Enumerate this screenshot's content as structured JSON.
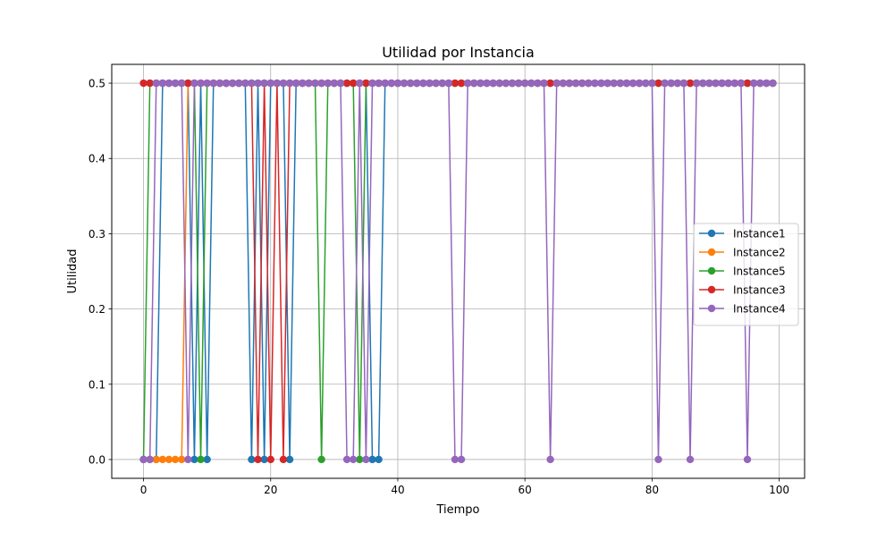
{
  "chart_data": {
    "type": "line",
    "title": "Utilidad por Instancia",
    "xlabel": "Tiempo",
    "ylabel": "Utilidad",
    "xlim": [
      -5,
      104
    ],
    "ylim": [
      -0.025,
      0.525
    ],
    "x_ticks": [
      0,
      20,
      40,
      60,
      80,
      100
    ],
    "x_tick_labels": [
      "0",
      "20",
      "40",
      "60",
      "80",
      "100"
    ],
    "y_ticks": [
      0.0,
      0.1,
      0.2,
      0.3,
      0.4,
      0.5
    ],
    "y_tick_labels": [
      "0.0",
      "0.1",
      "0.2",
      "0.3",
      "0.4",
      "0.5"
    ],
    "grid": true,
    "legend_position": "center-right",
    "marker": "circle",
    "x": [
      0,
      1,
      2,
      3,
      4,
      5,
      6,
      7,
      8,
      9,
      10,
      11,
      12,
      13,
      14,
      15,
      16,
      17,
      18,
      19,
      20,
      21,
      22,
      23,
      24,
      25,
      26,
      27,
      28,
      29,
      30,
      31,
      32,
      33,
      34,
      35,
      36,
      37,
      38,
      39,
      40,
      41,
      42,
      43,
      44,
      45,
      46,
      47,
      48,
      49,
      50,
      51,
      52,
      53,
      54,
      55,
      56,
      57,
      58,
      59,
      60,
      61,
      62,
      63,
      64,
      65,
      66,
      67,
      68,
      69,
      70,
      71,
      72,
      73,
      74,
      75,
      76,
      77,
      78,
      79,
      80,
      81,
      82,
      83,
      84,
      85,
      86,
      87,
      88,
      89,
      90,
      91,
      92,
      93,
      94,
      95,
      96,
      97,
      98,
      99
    ],
    "series": [
      {
        "name": "Instance1",
        "color": "#1f77b4",
        "x": [
          0,
          1,
          2,
          3,
          4,
          5,
          6,
          7,
          8,
          9,
          10,
          11,
          12,
          13,
          14,
          15,
          16,
          17,
          18,
          19,
          20,
          21,
          22,
          23,
          24,
          25,
          26,
          27,
          28,
          29,
          30,
          31,
          32,
          33,
          34,
          35,
          36,
          37,
          38,
          39,
          40,
          41,
          42,
          43,
          44,
          45,
          46,
          47,
          48,
          49,
          50,
          51,
          52,
          53,
          54,
          55,
          56,
          57,
          58,
          59,
          60,
          61,
          62,
          63,
          64,
          65,
          66,
          67,
          68,
          69,
          70,
          71,
          72,
          73,
          74,
          75,
          76,
          77,
          78,
          79,
          80,
          81,
          82,
          83,
          84,
          85,
          86,
          87,
          88,
          89,
          90,
          91,
          92,
          93,
          94,
          95,
          96,
          97,
          98,
          99
        ],
        "values": [
          0,
          0,
          0,
          0.5,
          0.5,
          0.5,
          0.5,
          0.5,
          0,
          0.5,
          0,
          0.5,
          0.5,
          0.5,
          0.5,
          0.5,
          0.5,
          0,
          0.5,
          0,
          0.5,
          0.5,
          0.5,
          0,
          0.5,
          0.5,
          0.5,
          0.5,
          0.5,
          0.5,
          0.5,
          0.5,
          0.5,
          0.5,
          0.5,
          0.5,
          0,
          0,
          0.5,
          0.5,
          0.5,
          0.5,
          0.5,
          0.5,
          0.5,
          0.5,
          0.5,
          0.5,
          0.5,
          0.5,
          0.5,
          0.5,
          0.5,
          0.5,
          0.5,
          0.5,
          0.5,
          0.5,
          0.5,
          0.5,
          0.5,
          0.5,
          0.5,
          0.5,
          0.5,
          0.5,
          0.5,
          0.5,
          0.5,
          0.5,
          0.5,
          0.5,
          0.5,
          0.5,
          0.5,
          0.5,
          0.5,
          0.5,
          0.5,
          0.5,
          0.5,
          0.5,
          0.5,
          0.5,
          0.5,
          0.5,
          0.5,
          0.5,
          0.5,
          0.5,
          0.5,
          0.5,
          0.5,
          0.5,
          0.5,
          0.5,
          0.5,
          0.5,
          0.5,
          0.5
        ]
      },
      {
        "name": "Instance2",
        "color": "#ff7f0e",
        "x": [
          0,
          1,
          2,
          3,
          4,
          5,
          6,
          7,
          8,
          9,
          10,
          11,
          12,
          13,
          14,
          15,
          16,
          17,
          18,
          19,
          20,
          21,
          22,
          23,
          24,
          25,
          26,
          27,
          28,
          29,
          30,
          31,
          32,
          33,
          34,
          35,
          36,
          37,
          38,
          39,
          40,
          41,
          42,
          43,
          44,
          45,
          46,
          47,
          48,
          49,
          50,
          51,
          52,
          53,
          54,
          55,
          56,
          57,
          58,
          59,
          60,
          61,
          62,
          63,
          64,
          65,
          66,
          67,
          68,
          69,
          70,
          71,
          72,
          73,
          74,
          75,
          76,
          77,
          78,
          79,
          80,
          81,
          82,
          83,
          84,
          85,
          86,
          87,
          88,
          89,
          90,
          91,
          92,
          93,
          94,
          95,
          96,
          97,
          98,
          99
        ],
        "values": [
          0,
          0,
          0,
          0,
          0,
          0,
          0,
          0.5,
          0.5,
          0.5,
          0.5,
          0.5,
          0.5,
          0.5,
          0.5,
          0.5,
          0.5,
          0.5,
          0.5,
          0.5,
          0.5,
          0.5,
          0.5,
          0.5,
          0.5,
          0.5,
          0.5,
          0.5,
          0.5,
          0.5,
          0.5,
          0.5,
          0.5,
          0.5,
          0.5,
          0.5,
          0.5,
          0.5,
          0.5,
          0.5,
          0.5,
          0.5,
          0.5,
          0.5,
          0.5,
          0.5,
          0.5,
          0.5,
          0.5,
          0.5,
          0.5,
          0.5,
          0.5,
          0.5,
          0.5,
          0.5,
          0.5,
          0.5,
          0.5,
          0.5,
          0.5,
          0.5,
          0.5,
          0.5,
          0.5,
          0.5,
          0.5,
          0.5,
          0.5,
          0.5,
          0.5,
          0.5,
          0.5,
          0.5,
          0.5,
          0.5,
          0.5,
          0.5,
          0.5,
          0.5,
          0.5,
          0.5,
          0.5,
          0.5,
          0.5,
          0.5,
          0.5,
          0.5,
          0.5,
          0.5,
          0.5,
          0.5,
          0.5,
          0.5,
          0.5,
          0.5,
          0.5,
          0.5,
          0.5,
          0.5
        ]
      },
      {
        "name": "Instance5",
        "color": "#2ca02c",
        "x": [
          0,
          1,
          2,
          3,
          4,
          5,
          6,
          7,
          8,
          9,
          10,
          11,
          12,
          13,
          14,
          15,
          16,
          17,
          18,
          19,
          20,
          21,
          22,
          23,
          24,
          25,
          26,
          27,
          28,
          29,
          30,
          31,
          32,
          33,
          34,
          35,
          36,
          37,
          38,
          39,
          40,
          41,
          42,
          43,
          44,
          45,
          46,
          47,
          48,
          49,
          50,
          51,
          52,
          53,
          54,
          55,
          56,
          57,
          58,
          59,
          60,
          61,
          62,
          63,
          64,
          65,
          66,
          67,
          68,
          69,
          70,
          71,
          72,
          73,
          74,
          75,
          76,
          77,
          78,
          79,
          80,
          81,
          82,
          83,
          84,
          85,
          86,
          87,
          88,
          89,
          90,
          91,
          92,
          93,
          94,
          95,
          96,
          97,
          98,
          99
        ],
        "values": [
          0,
          0.5,
          0.5,
          0.5,
          0.5,
          0.5,
          0.5,
          0.5,
          0.5,
          0,
          0.5,
          0.5,
          0.5,
          0.5,
          0.5,
          0.5,
          0.5,
          0.5,
          0.5,
          0.5,
          0.5,
          0.5,
          0.5,
          0.5,
          0.5,
          0.5,
          0.5,
          0.5,
          0,
          0.5,
          0.5,
          0.5,
          0.5,
          0.5,
          0,
          0.5,
          0.5,
          0.5,
          0.5,
          0.5,
          0.5,
          0.5,
          0.5,
          0.5,
          0.5,
          0.5,
          0.5,
          0.5,
          0.5,
          0.5,
          0.5,
          0.5,
          0.5,
          0.5,
          0.5,
          0.5,
          0.5,
          0.5,
          0.5,
          0.5,
          0.5,
          0.5,
          0.5,
          0.5,
          0.5,
          0.5,
          0.5,
          0.5,
          0.5,
          0.5,
          0.5,
          0.5,
          0.5,
          0.5,
          0.5,
          0.5,
          0.5,
          0.5,
          0.5,
          0.5,
          0.5,
          0.5,
          0.5,
          0.5,
          0.5,
          0.5,
          0.5,
          0.5,
          0.5,
          0.5,
          0.5,
          0.5,
          0.5,
          0.5,
          0.5,
          0.5,
          0.5,
          0.5,
          0.5,
          0.5
        ]
      },
      {
        "name": "Instance3",
        "color": "#d62728",
        "x": [
          0,
          1,
          2,
          3,
          4,
          5,
          6,
          7,
          8,
          9,
          10,
          11,
          12,
          13,
          14,
          15,
          16,
          17,
          18,
          19,
          20,
          21,
          22,
          23,
          24,
          25,
          26,
          27,
          28,
          29,
          30,
          31,
          32,
          33,
          34,
          35,
          36,
          37,
          38,
          39,
          40,
          41,
          42,
          43,
          44,
          45,
          46,
          47,
          48,
          49,
          50,
          51,
          52,
          53,
          54,
          55,
          56,
          57,
          58,
          59,
          60,
          61,
          62,
          63,
          64,
          65,
          66,
          67,
          68,
          69,
          70,
          71,
          72,
          73,
          74,
          75,
          76,
          77,
          78,
          79,
          80,
          81,
          82,
          83,
          84,
          85,
          86,
          87,
          88,
          89,
          90,
          91,
          92,
          93,
          94,
          95,
          96,
          97,
          98,
          99
        ],
        "values": [
          0.5,
          0.5,
          0.5,
          0.5,
          0.5,
          0.5,
          0.5,
          0.5,
          0.5,
          0.5,
          0.5,
          0.5,
          0.5,
          0.5,
          0.5,
          0.5,
          0.5,
          0.5,
          0,
          0.5,
          0,
          0.5,
          0,
          0.5,
          0.5,
          0.5,
          0.5,
          0.5,
          0.5,
          0.5,
          0.5,
          0.5,
          0.5,
          0.5,
          0.5,
          0.5,
          0.5,
          0.5,
          0.5,
          0.5,
          0.5,
          0.5,
          0.5,
          0.5,
          0.5,
          0.5,
          0.5,
          0.5,
          0.5,
          0.5,
          0.5,
          0.5,
          0.5,
          0.5,
          0.5,
          0.5,
          0.5,
          0.5,
          0.5,
          0.5,
          0.5,
          0.5,
          0.5,
          0.5,
          0.5,
          0.5,
          0.5,
          0.5,
          0.5,
          0.5,
          0.5,
          0.5,
          0.5,
          0.5,
          0.5,
          0.5,
          0.5,
          0.5,
          0.5,
          0.5,
          0.5,
          0.5,
          0.5,
          0.5,
          0.5,
          0.5,
          0.5,
          0.5,
          0.5,
          0.5,
          0.5,
          0.5,
          0.5,
          0.5,
          0.5,
          0.5,
          0.5,
          0.5,
          0.5,
          0.5
        ]
      },
      {
        "name": "Instance4",
        "color": "#9467bd",
        "x": [
          0,
          1,
          2,
          3,
          4,
          5,
          6,
          7,
          8,
          9,
          10,
          11,
          12,
          13,
          14,
          15,
          16,
          17,
          18,
          19,
          20,
          21,
          22,
          23,
          24,
          25,
          26,
          27,
          28,
          29,
          30,
          31,
          32,
          33,
          34,
          35,
          36,
          37,
          38,
          39,
          40,
          41,
          42,
          43,
          44,
          45,
          46,
          47,
          48,
          49,
          50,
          51,
          52,
          53,
          54,
          55,
          56,
          57,
          58,
          59,
          60,
          61,
          62,
          63,
          64,
          65,
          66,
          67,
          68,
          69,
          70,
          71,
          72,
          73,
          74,
          75,
          76,
          77,
          78,
          79,
          80,
          81,
          82,
          83,
          84,
          85,
          86,
          87,
          88,
          89,
          90,
          91,
          92,
          93,
          94,
          95,
          96,
          97,
          98,
          99
        ],
        "values": [
          0,
          0,
          0.5,
          0.5,
          0.5,
          0.5,
          0.5,
          0,
          0.5,
          0.5,
          0.5,
          0.5,
          0.5,
          0.5,
          0.5,
          0.5,
          0.5,
          0.5,
          0.5,
          0.5,
          0.5,
          0.5,
          0.5,
          0.5,
          0.5,
          0.5,
          0.5,
          0.5,
          0.5,
          0.5,
          0.5,
          0.5,
          0,
          0,
          0.5,
          0,
          0.5,
          0.5,
          0.5,
          0.5,
          0.5,
          0.5,
          0.5,
          0.5,
          0.5,
          0.5,
          0.5,
          0.5,
          0.5,
          0,
          0,
          0.5,
          0.5,
          0.5,
          0.5,
          0.5,
          0.5,
          0.5,
          0.5,
          0.5,
          0.5,
          0.5,
          0.5,
          0.5,
          0,
          0.5,
          0.5,
          0.5,
          0.5,
          0.5,
          0.5,
          0.5,
          0.5,
          0.5,
          0.5,
          0.5,
          0.5,
          0.5,
          0.5,
          0.5,
          0.5,
          0,
          0.5,
          0.5,
          0.5,
          0.5,
          0,
          0.5,
          0.5,
          0.5,
          0.5,
          0.5,
          0.5,
          0.5,
          0.5,
          0,
          0.5,
          0.5,
          0.5,
          0.5
        ]
      }
    ]
  }
}
